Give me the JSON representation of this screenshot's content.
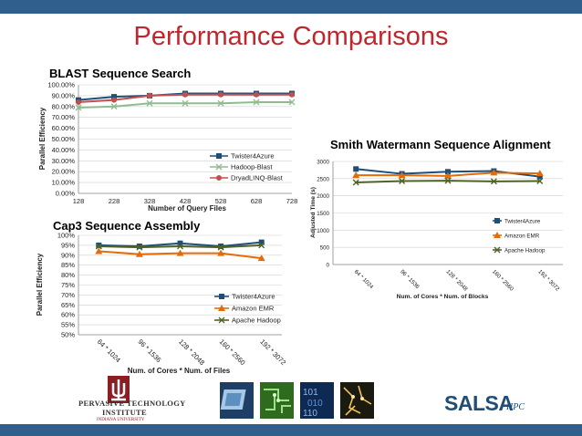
{
  "slide": {
    "title": "Performance Comparisons",
    "colors": {
      "bar": "#2f5f8a",
      "title": "#c0262d"
    }
  },
  "footer": {
    "institute_line1": "PERVASIVE TECHNOLOGY",
    "institute_line2": "INSTITUTE",
    "institute_line3": "INDIANA UNIVERSITY",
    "salsa": "SALSA",
    "hpc": "HPC"
  },
  "chart_data": [
    {
      "id": "blast",
      "type": "line",
      "title": "BLAST Sequence Search",
      "xlabel": "Number of Query Files",
      "ylabel": "Parallel Efficiency",
      "x": [
        "128",
        "228",
        "328",
        "428",
        "528",
        "628",
        "728"
      ],
      "ylim": [
        0,
        100
      ],
      "yticks": [
        "0.00%",
        "10.00%",
        "20.00%",
        "30.00%",
        "40.00%",
        "50.00%",
        "60.00%",
        "70.00%",
        "80.00%",
        "90.00%",
        "100.00%"
      ],
      "legend_position": "bottom-right",
      "series": [
        {
          "name": "Twister4Azure",
          "color": "#1f4e79",
          "marker": "square",
          "values": [
            86,
            89,
            90,
            92,
            92,
            92,
            92
          ]
        },
        {
          "name": "Hadoop-Blast",
          "color": "#8fbc8f",
          "marker": "x",
          "values": [
            79,
            80,
            83,
            83,
            83,
            84,
            84
          ]
        },
        {
          "name": "DryadLINQ-Blast",
          "color": "#c0504d",
          "marker": "circle",
          "values": [
            84,
            86,
            90,
            91,
            91,
            91,
            91
          ]
        }
      ]
    },
    {
      "id": "cap3",
      "type": "line",
      "title": "Cap3 Sequence Assembly",
      "xlabel": "Num. of Cores * Num. of Files",
      "ylabel": "Parallel Efficiency",
      "x": [
        "64 * 1024",
        "96 * 1536",
        "128 * 2048",
        "160 * 2560",
        "192 * 3072"
      ],
      "ylim": [
        50,
        100
      ],
      "yticks": [
        "50%",
        "55%",
        "60%",
        "65%",
        "70%",
        "75%",
        "80%",
        "85%",
        "90%",
        "95%",
        "100%"
      ],
      "legend_position": "bottom-right",
      "series": [
        {
          "name": "Twister4Azure",
          "color": "#1f4e79",
          "marker": "square",
          "values": [
            95,
            94.5,
            96,
            94.5,
            96.5
          ]
        },
        {
          "name": "Amazon EMR",
          "color": "#e36c09",
          "marker": "triangle",
          "values": [
            92,
            90.5,
            91,
            91,
            88.5
          ]
        },
        {
          "name": "Apache Hadoop",
          "color": "#4f6228",
          "marker": "x",
          "values": [
            94.5,
            94,
            94.5,
            94,
            95
          ]
        }
      ]
    },
    {
      "id": "swg",
      "type": "line",
      "title": "Smith Watermann Sequence Alignment",
      "xlabel": "Num. of Cores * Num. of Blocks",
      "ylabel": "Adjusted Time (s)",
      "x": [
        "64 * 1024",
        "96 * 1536",
        "128 * 2048",
        "160 * 2560",
        "192 * 3072"
      ],
      "ylim": [
        0,
        3000
      ],
      "yticks": [
        "0",
        "500",
        "1000",
        "1500",
        "2000",
        "2500",
        "3000"
      ],
      "legend_position": "bottom-right",
      "series": [
        {
          "name": "Twister4Azure",
          "color": "#1f4e79",
          "marker": "square",
          "values": [
            2780,
            2640,
            2700,
            2720,
            2560
          ]
        },
        {
          "name": "Amazon EMR",
          "color": "#e36c09",
          "marker": "triangle",
          "values": [
            2600,
            2600,
            2580,
            2670,
            2650
          ]
        },
        {
          "name": "Apache Hadoop",
          "color": "#4f6228",
          "marker": "x",
          "values": [
            2390,
            2430,
            2440,
            2420,
            2430
          ]
        }
      ]
    }
  ]
}
